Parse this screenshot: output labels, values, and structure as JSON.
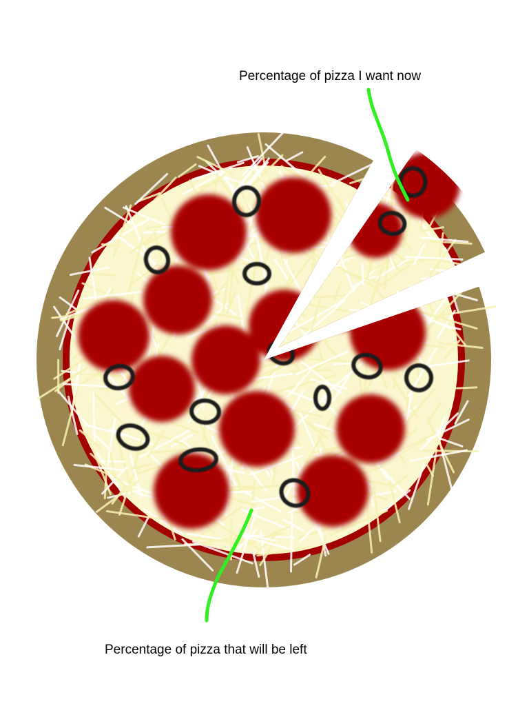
{
  "chart_data": {
    "type": "pie",
    "slices": [
      {
        "label": "Percentage of pizza I want now",
        "value": 9
      },
      {
        "label": "Percentage of pizza that will be left",
        "value": 91
      }
    ]
  },
  "colors": {
    "crust": "#9c8650",
    "sauce": "#a30000",
    "cheese_base": "#fbf7cf",
    "cheese_strand": "#f3eea5",
    "pepperoni": "#a80000",
    "olive": "#1a1a1a",
    "pointer": "#33ee22"
  }
}
